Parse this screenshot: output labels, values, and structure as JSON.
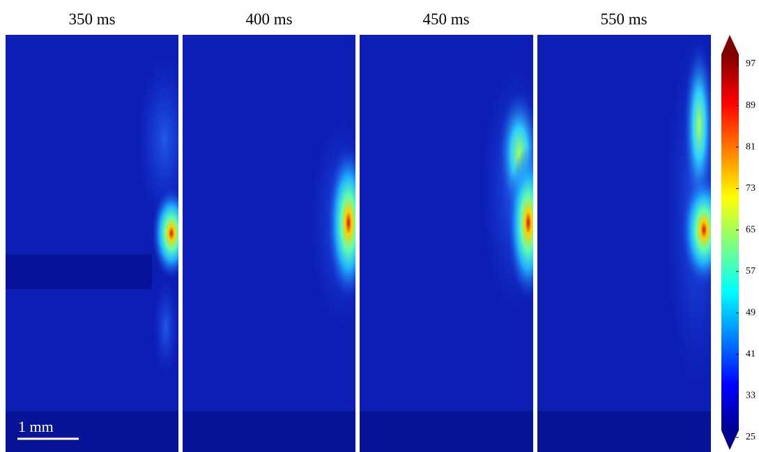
{
  "panels": [
    {
      "title": "350 ms"
    },
    {
      "title": "400 ms"
    },
    {
      "title": "450 ms"
    },
    {
      "title": "550 ms"
    }
  ],
  "scale_bar": "1 mm",
  "colorbar": {
    "ticks": [
      97,
      89,
      81,
      73,
      65,
      57,
      49,
      41,
      33,
      25
    ]
  }
}
